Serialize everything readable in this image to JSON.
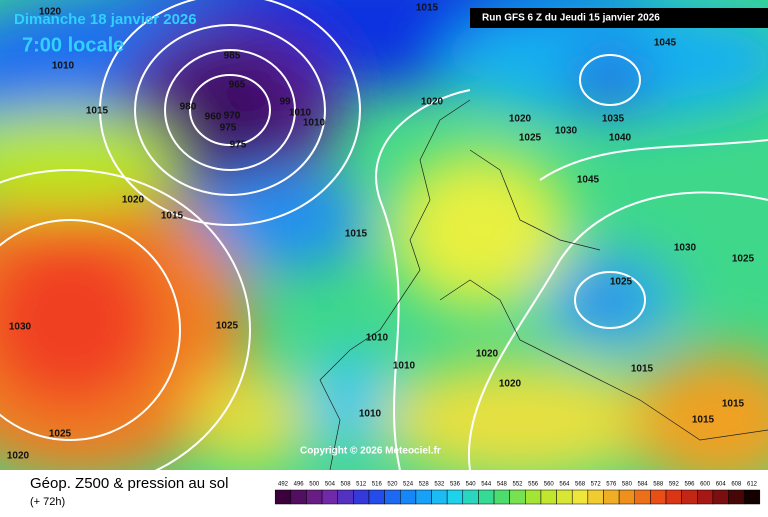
{
  "header": {
    "date": "Dimanche 18 janvier 2026",
    "time": "7:00 locale",
    "run": "Run GFS 6 Z du Jeudi 15 janvier 2026"
  },
  "copyright": "Copyright © 2026 Meteociel.fr",
  "footer": {
    "title": "Géop. Z500 & pression au sol",
    "subtitle": "(+ 72h)"
  },
  "isobar_labels": [
    1020,
    1015,
    1010,
    985,
    965,
    980,
    99,
    1010,
    1010,
    960,
    970,
    975,
    975,
    1015,
    1020,
    1015,
    1020,
    1020,
    1025,
    1030,
    1035,
    1040,
    1045,
    1045,
    1015,
    1030,
    1025,
    1025,
    1030,
    1025,
    1010,
    1010,
    1020,
    1020,
    1015,
    1010,
    1025,
    1020,
    1015,
    1015
  ],
  "legend": {
    "labels": [
      492,
      496,
      500,
      504,
      508,
      512,
      516,
      520,
      524,
      528,
      532,
      536,
      540,
      544,
      548,
      552,
      556,
      560,
      564,
      568,
      572,
      576,
      580,
      584,
      588,
      592,
      596,
      600,
      604,
      608,
      612
    ]
  }
}
